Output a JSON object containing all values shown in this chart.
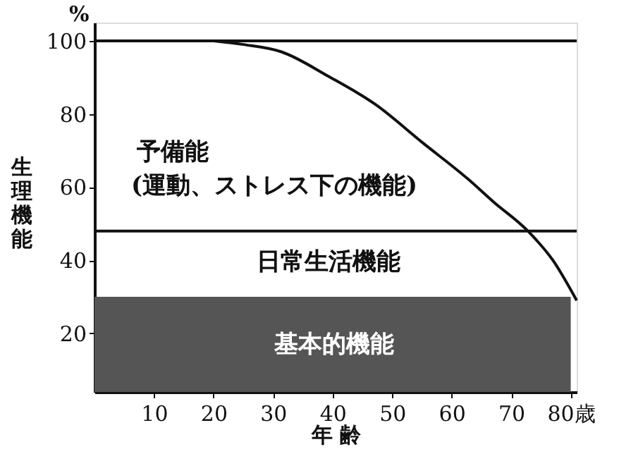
{
  "chart_data": {
    "type": "line",
    "xlabel": "年 齢",
    "ylabel": "生理機能",
    "xlim": [
      0,
      81
    ],
    "ylim": [
      4,
      105
    ],
    "xticks": [
      10,
      20,
      30,
      40,
      50,
      60,
      70,
      {
        "value": 80,
        "label": "80歳"
      }
    ],
    "yticks": [
      20,
      40,
      60,
      80,
      100
    ],
    "x": [
      20,
      25,
      31.4,
      39.3,
      47.2,
      55,
      62.9,
      67,
      72.8,
      77,
      81
    ],
    "series": [
      {
        "color": "#111111",
        "values": [
          100,
          99,
          97,
          90.3,
          82.6,
          72.3,
          62,
          56,
          48,
          40,
          29
        ]
      }
    ],
    "ref_lines": [
      {
        "axis": "y",
        "value": 100,
        "color": "#111111"
      },
      {
        "axis": "y",
        "value": 48,
        "color": "#111111"
      }
    ],
    "bands": [
      {
        "axis": "y",
        "from": 4,
        "to": 30,
        "label": "基本的機能",
        "color": "#555555"
      }
    ],
    "annotations": [
      "%",
      "予備能",
      "(運動、ストレス下の機能)",
      "日常生活機能"
    ],
    "grid": false
  }
}
